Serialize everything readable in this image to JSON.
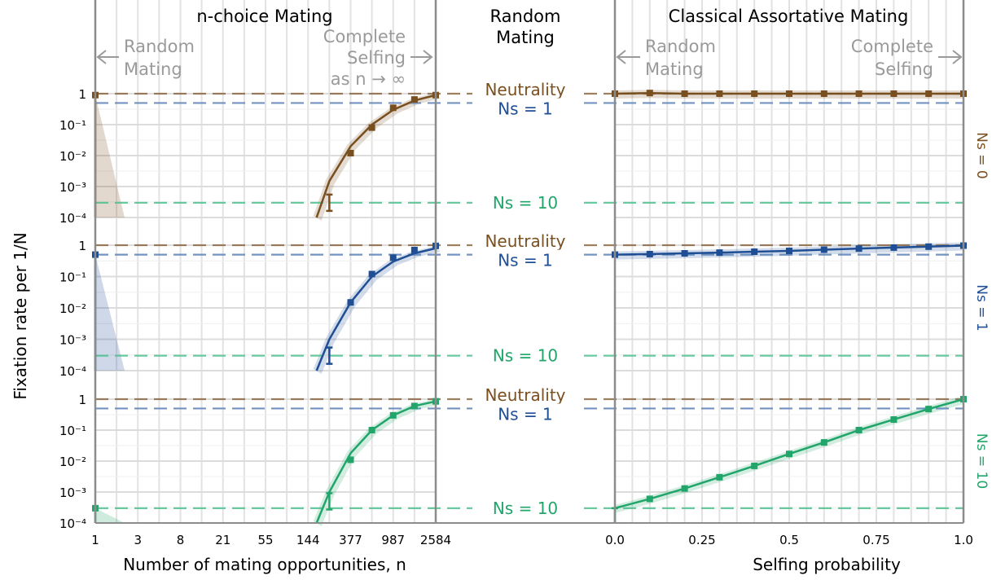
{
  "headers": {
    "left": "n-choice Mating",
    "middle": [
      "Random",
      "Mating"
    ],
    "right": "Classical Assortative Mating"
  },
  "annotations": {
    "left_random": [
      "Random",
      "Mating"
    ],
    "left_selfing": [
      "Complete",
      "Selfing",
      "as n → ∞"
    ],
    "right_random": [
      "Random",
      "Mating"
    ],
    "right_selfing": [
      "Complete",
      "Selfing"
    ]
  },
  "ylabel": "Fixation rate per 1/N",
  "xlabel_left": "Number of mating opportunities, n",
  "xlabel_right": "Selfing probability",
  "x_ticks_left": [
    "1",
    "3",
    "8",
    "21",
    "55",
    "144",
    "377",
    "987",
    "2584"
  ],
  "x_ticks_right": [
    "0.0",
    "0.25",
    "0.5",
    "0.75",
    "1.0"
  ],
  "y_ticks": [
    "1",
    "10⁻¹",
    "10⁻²",
    "10⁻³",
    "10⁻⁴"
  ],
  "reference_lines": [
    {
      "label": "Neutrality",
      "value": 1,
      "color": "#8b6a45"
    },
    {
      "label": "Ns = 1",
      "value": 0.5,
      "color": "#5b82b8"
    },
    {
      "label": "Ns = 10",
      "value": 0.0003,
      "color": "#4fc08f"
    }
  ],
  "colors": {
    "ns0": "#7a4f1f",
    "ns1": "#1f4e95",
    "ns10": "#21a56a"
  },
  "chart_data": {
    "type": "line",
    "yscale": "log",
    "ylim": [
      0.0001,
      1
    ],
    "rows": [
      {
        "label": "Ns = 0",
        "color": "#7a4f1f",
        "left": {
          "x_index": [
            0,
            5.5,
            6,
            6.5,
            7,
            7.5,
            8
          ],
          "points": [
            0.9,
            0.0003,
            0.012,
            0.08,
            0.35,
            0.65,
            0.9
          ],
          "curve_x": [
            5.2,
            5.5,
            6,
            6.5,
            7,
            7.5,
            8
          ],
          "curve_y": [
            0.0001,
            0.0015,
            0.02,
            0.1,
            0.3,
            0.6,
            0.9
          ]
        },
        "right": {
          "x": [
            0,
            0.1,
            0.2,
            0.3,
            0.4,
            0.5,
            0.6,
            0.7,
            0.8,
            0.9,
            1.0
          ],
          "y": [
            1,
            1.05,
            1,
            1,
            1,
            1,
            1,
            1,
            1,
            1,
            1
          ]
        }
      },
      {
        "label": "Ns = 1",
        "color": "#1f4e95",
        "left": {
          "x_index": [
            0,
            5.5,
            6,
            6.5,
            7,
            7.5,
            8
          ],
          "points": [
            0.5,
            0.0003,
            0.015,
            0.12,
            0.4,
            0.7,
            0.95
          ],
          "curve_x": [
            5.2,
            5.5,
            6,
            6.5,
            7,
            7.5,
            8
          ],
          "curve_y": [
            0.0001,
            0.001,
            0.015,
            0.1,
            0.3,
            0.55,
            0.8
          ]
        },
        "right": {
          "x": [
            0,
            0.1,
            0.2,
            0.3,
            0.4,
            0.5,
            0.6,
            0.7,
            0.8,
            0.9,
            1.0
          ],
          "y": [
            0.5,
            0.52,
            0.55,
            0.58,
            0.62,
            0.66,
            0.72,
            0.78,
            0.84,
            0.9,
            0.97
          ]
        }
      },
      {
        "label": "Ns = 10",
        "color": "#21a56a",
        "left": {
          "x_index": [
            0,
            5.5,
            6,
            6.5,
            7,
            7.5,
            8
          ],
          "points": [
            0.0003,
            0.0005,
            0.011,
            0.1,
            0.3,
            0.6,
            0.85
          ],
          "curve_x": [
            5.2,
            5.5,
            6,
            6.5,
            7,
            7.5,
            8
          ],
          "curve_y": [
            0.0001,
            0.001,
            0.018,
            0.1,
            0.3,
            0.6,
            0.85
          ]
        },
        "right": {
          "x": [
            0,
            0.1,
            0.2,
            0.3,
            0.4,
            0.5,
            0.6,
            0.7,
            0.8,
            0.9,
            1.0
          ],
          "y": [
            0.0003,
            0.0006,
            0.0013,
            0.003,
            0.007,
            0.017,
            0.04,
            0.1,
            0.22,
            0.48,
            1.0
          ]
        }
      }
    ]
  }
}
